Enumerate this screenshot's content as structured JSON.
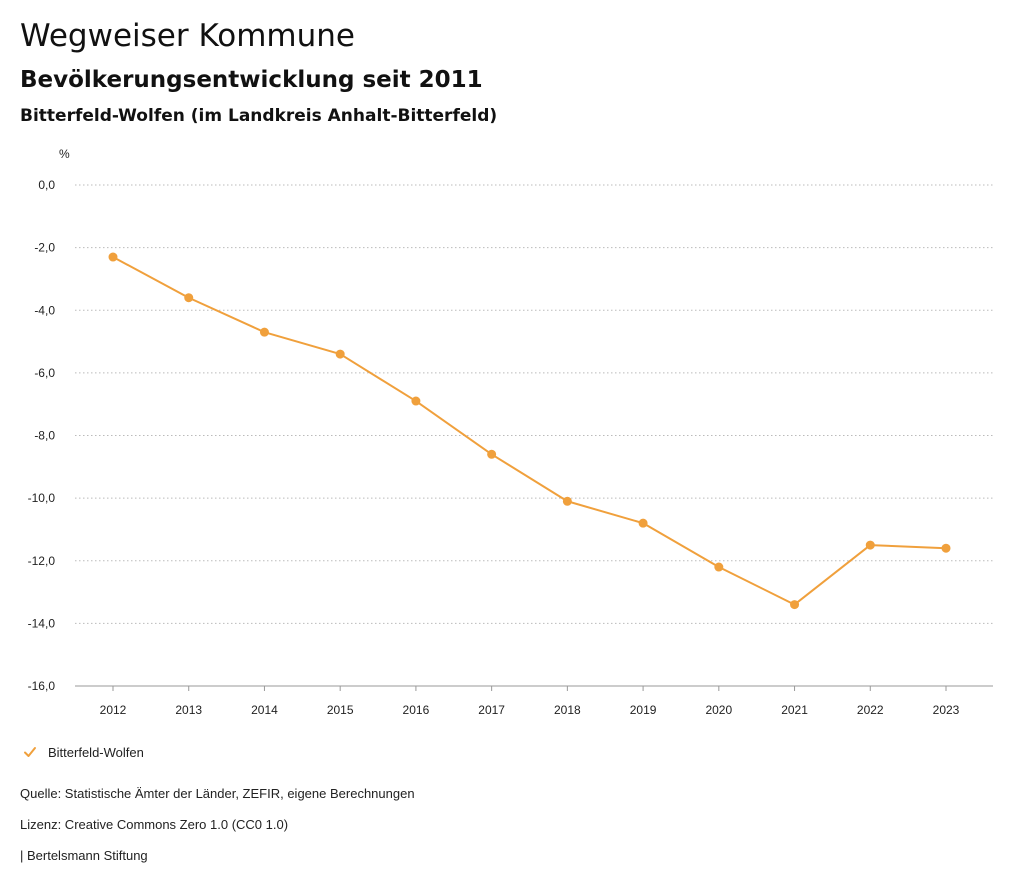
{
  "header": {
    "title": "Wegweiser Kommune",
    "subtitle": "Bevölkerungsentwicklung seit 2011",
    "region": "Bitterfeld-Wolfen (im Landkreis Anhalt-Bitterfeld)"
  },
  "legend": {
    "label": "Bitterfeld-Wolfen",
    "icon": "checkmark-icon"
  },
  "footer": {
    "source": "Quelle: Statistische Ämter der Länder, ZEFIR, eigene Berechnungen",
    "license": "Lizenz: Creative Commons Zero 1.0 (CC0 1.0)",
    "publisher": "| Bertelsmann Stiftung"
  },
  "colors": {
    "series": "#f0a03c",
    "grid": "#bbbbbb"
  },
  "chart_data": {
    "type": "line",
    "ylabel": "%",
    "ylim": [
      -16,
      0
    ],
    "yticks": [
      "0,0",
      "-2,0",
      "-4,0",
      "-6,0",
      "-8,0",
      "-10,0",
      "-12,0",
      "-14,0",
      "-16,0"
    ],
    "ytick_values": [
      0,
      -2,
      -4,
      -6,
      -8,
      -10,
      -12,
      -14,
      -16
    ],
    "categories": [
      "2012",
      "2013",
      "2014",
      "2015",
      "2016",
      "2017",
      "2018",
      "2019",
      "2020",
      "2021",
      "2022",
      "2023"
    ],
    "grid": true,
    "legend_position": "bottom-left",
    "series": [
      {
        "name": "Bitterfeld-Wolfen",
        "values": [
          -2.3,
          -3.6,
          -4.7,
          -5.4,
          -6.9,
          -8.6,
          -10.1,
          -10.8,
          -12.2,
          -13.4,
          -11.5,
          -11.6
        ]
      }
    ]
  }
}
